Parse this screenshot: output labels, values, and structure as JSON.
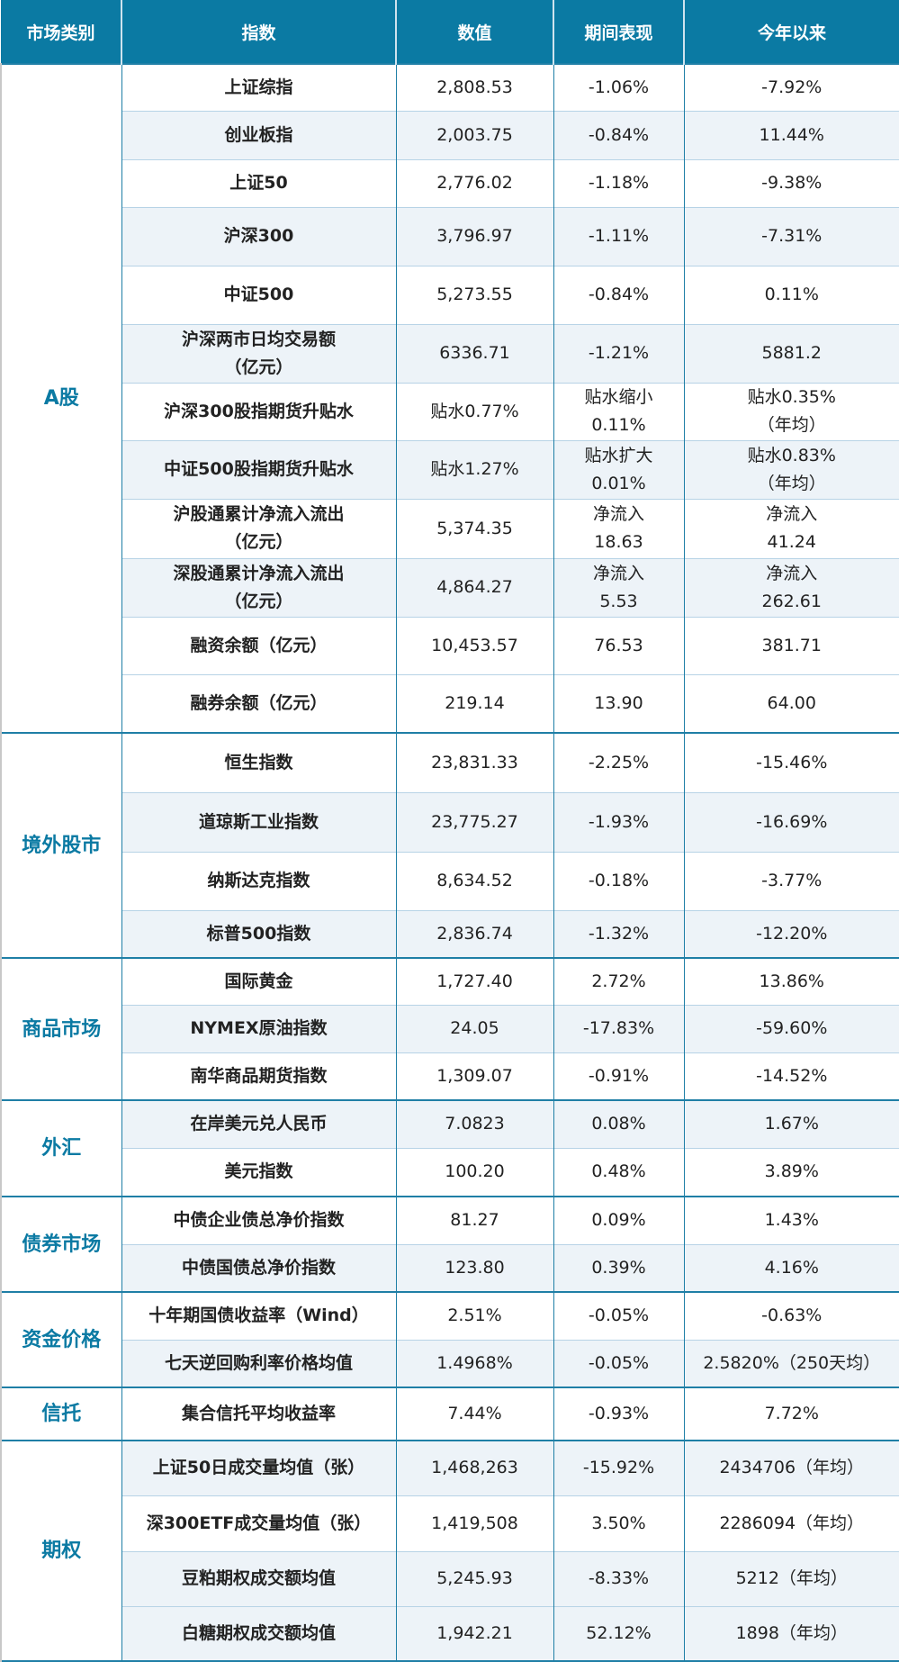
{
  "header": {
    "col_category": "市场类别",
    "col_index": "指数",
    "col_value": "数值",
    "col_period": "期间表现",
    "col_ytd": "今年以来"
  },
  "colors": {
    "header_bg": "#0b7aa3",
    "category_text": "#0b7aa3",
    "shade_bg": "#edf3f8",
    "border": "#1f7fa6"
  },
  "groups": [
    {
      "category": "A股",
      "rows": [
        {
          "index": "上证综指",
          "value": "2,808.53",
          "period": "-1.06%",
          "ytd": "-7.92%"
        },
        {
          "index": "创业板指",
          "value": "2,003.75",
          "period": "-0.84%",
          "ytd": "11.44%"
        },
        {
          "index": "上证50",
          "value": "2,776.02",
          "period": "-1.18%",
          "ytd": "-9.38%"
        },
        {
          "index": "沪深300",
          "value": "3,796.97",
          "period": "-1.11%",
          "ytd": "-7.31%"
        },
        {
          "index": "中证500",
          "value": "5,273.55",
          "period": "-0.84%",
          "ytd": "0.11%"
        },
        {
          "index": "沪深两市日均交易额",
          "index2": "（亿元）",
          "value": "6336.71",
          "period": "-1.21%",
          "ytd": "5881.2"
        },
        {
          "index": "沪深300股指期货升贴水",
          "value": "贴水0.77%",
          "period": "贴水缩小",
          "period2": "0.11%",
          "ytd": "贴水0.35%",
          "ytd2": "（年均）"
        },
        {
          "index": "中证500股指期货升贴水",
          "value": "贴水1.27%",
          "period": "贴水扩大",
          "period2": "0.01%",
          "ytd": "贴水0.83%",
          "ytd2": "（年均）"
        },
        {
          "index": "沪股通累计净流入流出",
          "index2": "（亿元）",
          "value": "5,374.35",
          "period": "净流入",
          "period2": "18.63",
          "ytd": "净流入",
          "ytd2": "41.24"
        },
        {
          "index": "深股通累计净流入流出",
          "index2": "（亿元）",
          "value": "4,864.27",
          "period": "净流入",
          "period2": "5.53",
          "ytd": "净流入",
          "ytd2": "262.61"
        },
        {
          "index": "融资余额（亿元）",
          "value": "10,453.57",
          "period": "76.53",
          "ytd": "381.71"
        },
        {
          "index": "融券余额（亿元）",
          "value": "219.14",
          "period": "13.90",
          "ytd": "64.00"
        }
      ]
    },
    {
      "category": "境外股市",
      "rows": [
        {
          "index": "恒生指数",
          "value": "23,831.33",
          "period": "-2.25%",
          "ytd": "-15.46%"
        },
        {
          "index": "道琼斯工业指数",
          "value": "23,775.27",
          "period": "-1.93%",
          "ytd": "-16.69%"
        },
        {
          "index": "纳斯达克指数",
          "value": "8,634.52",
          "period": "-0.18%",
          "ytd": "-3.77%"
        },
        {
          "index": "标普500指数",
          "value": "2,836.74",
          "period": "-1.32%",
          "ytd": "-12.20%"
        }
      ]
    },
    {
      "category": "商品市场",
      "rows": [
        {
          "index": "国际黄金",
          "value": "1,727.40",
          "period": "2.72%",
          "ytd": "13.86%"
        },
        {
          "index": "NYMEX原油指数",
          "value": "24.05",
          "period": "-17.83%",
          "ytd": "-59.60%"
        },
        {
          "index": "南华商品期货指数",
          "value": "1,309.07",
          "period": "-0.91%",
          "ytd": "-14.52%"
        }
      ]
    },
    {
      "category": "外汇",
      "rows": [
        {
          "index": "在岸美元兑人民币",
          "value": "7.0823",
          "period": "0.08%",
          "ytd": "1.67%"
        },
        {
          "index": "美元指数",
          "value": "100.20",
          "period": "0.48%",
          "ytd": "3.89%"
        }
      ]
    },
    {
      "category": "债券市场",
      "rows": [
        {
          "index": "中债企业债总净价指数",
          "value": "81.27",
          "period": "0.09%",
          "ytd": "1.43%"
        },
        {
          "index": "中债国债总净价指数",
          "value": "123.80",
          "period": "0.39%",
          "ytd": "4.16%"
        }
      ]
    },
    {
      "category": "资金价格",
      "rows": [
        {
          "index": "十年期国债收益率（Wind）",
          "value": "2.51%",
          "period": "-0.05%",
          "ytd": "-0.63%"
        },
        {
          "index": "七天逆回购利率价格均值",
          "value": "1.4968%",
          "period": "-0.05%",
          "ytd": "2.5820%（250天均）"
        }
      ]
    },
    {
      "category": "信托",
      "rows": [
        {
          "index": "集合信托平均收益率",
          "value": "7.44%",
          "period": "-0.93%",
          "ytd": "7.72%"
        }
      ]
    },
    {
      "category": "期权",
      "rows": [
        {
          "index": "上证50日成交量均值（张）",
          "value": "1,468,263",
          "period": "-15.92%",
          "ytd": "2434706（年均）"
        },
        {
          "index": "深300ETF成交量均值（张）",
          "value": "1,419,508",
          "period": "3.50%",
          "ytd": "2286094（年均）"
        },
        {
          "index": "豆粕期权成交额均值",
          "value": "5,245.93",
          "period": "-8.33%",
          "ytd": "5212（年均）"
        },
        {
          "index": "白糖期权成交额均值",
          "value": "1,942.21",
          "period": "52.12%",
          "ytd": "1898（年均）"
        }
      ]
    }
  ]
}
